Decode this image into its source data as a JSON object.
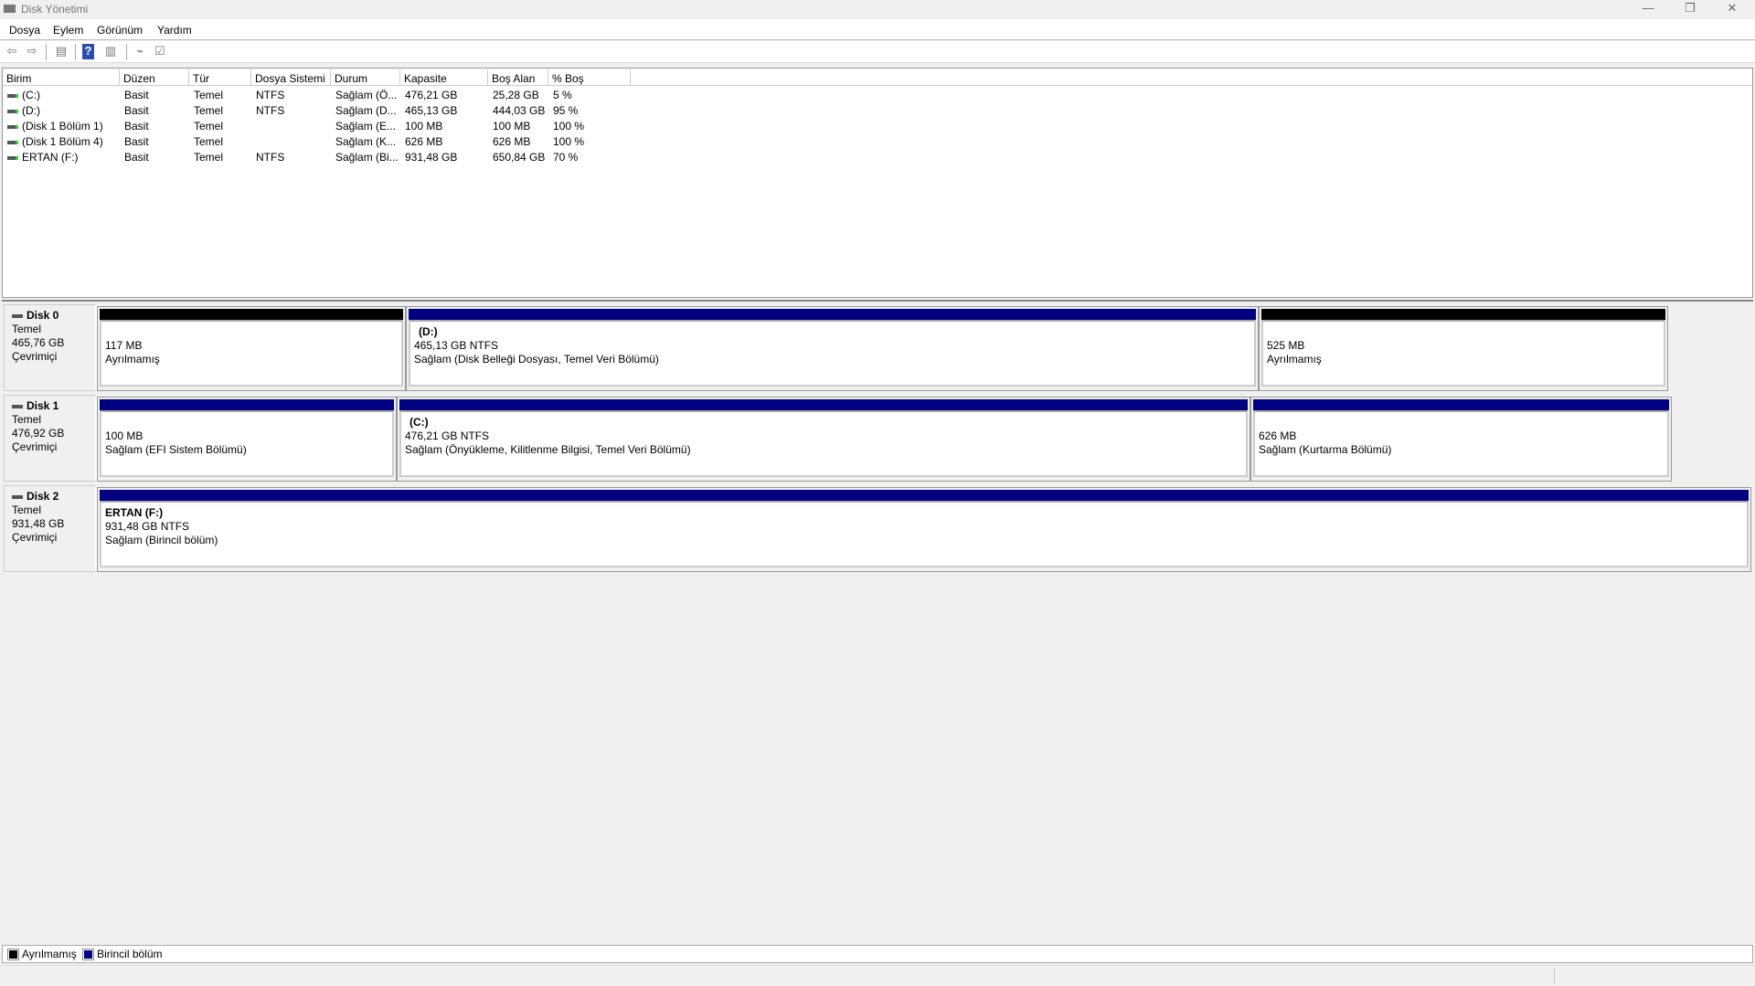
{
  "window": {
    "title": "Disk Yönetimi",
    "minimize": "—",
    "restore": "❐",
    "close": "✕"
  },
  "menu": [
    "Dosya",
    "Eylem",
    "Görünüm",
    "Yardım"
  ],
  "toolbar": [
    "back-icon",
    "forward-icon",
    "console-tree-icon",
    "help-icon",
    "action-pane-icon",
    "connect-icon",
    "properties-icon"
  ],
  "list": {
    "columns": [
      "Birim",
      "Düzen",
      "Tür",
      "Dosya Sistemi",
      "Durum",
      "Kapasite",
      "Boş Alan",
      "% Boş"
    ],
    "rows": [
      [
        "(C:)",
        "Basit",
        "Temel",
        "NTFS",
        "Sağlam (Ö...",
        "476,21 GB",
        "25,28 GB",
        "5 %"
      ],
      [
        "(D:)",
        "Basit",
        "Temel",
        "NTFS",
        "Sağlam (D...",
        "465,13 GB",
        "444,03 GB",
        "95 %"
      ],
      [
        "(Disk 1 Bölüm 1)",
        "Basit",
        "Temel",
        "",
        "Sağlam (E...",
        "100 MB",
        "100 MB",
        "100 %"
      ],
      [
        "(Disk 1 Bölüm 4)",
        "Basit",
        "Temel",
        "",
        "Sağlam (K...",
        "626 MB",
        "626 MB",
        "100 %"
      ],
      [
        "ERTAN (F:)",
        "Basit",
        "Temel",
        "NTFS",
        "Sağlam (Bi...",
        "931,48 GB",
        "650,84 GB",
        "70 %"
      ]
    ]
  },
  "disks": [
    {
      "name": "Disk 0",
      "type": "Temel",
      "size": "465,76 GB",
      "status": "Çevrimiçi",
      "partitions": [
        {
          "kind": "unallocated",
          "label": "",
          "size": "117 MB",
          "desc": "Ayrılmamış"
        },
        {
          "kind": "primary",
          "label": "(D:)",
          "size": "465,13 GB NTFS",
          "desc": "Sağlam (Disk Belleği Dosyası, Temel Veri Bölümü)"
        },
        {
          "kind": "unallocated",
          "label": "",
          "size": "525 MB",
          "desc": "Ayrılmamış"
        }
      ]
    },
    {
      "name": "Disk 1",
      "type": "Temel",
      "size": "476,92 GB",
      "status": "Çevrimiçi",
      "partitions": [
        {
          "kind": "primary",
          "label": "",
          "size": "100 MB",
          "desc": "Sağlam (EFI Sistem Bölümü)"
        },
        {
          "kind": "primary",
          "label": "(C:)",
          "size": "476,21 GB NTFS",
          "desc": "Sağlam (Önyükleme, Kilitlenme Bilgisi, Temel Veri Bölümü)"
        },
        {
          "kind": "primary",
          "label": "",
          "size": "626 MB",
          "desc": "Sağlam (Kurtarma Bölümü)"
        }
      ]
    },
    {
      "name": "Disk 2",
      "type": "Temel",
      "size": "931,48 GB",
      "status": "Çevrimiçi",
      "partitions": [
        {
          "kind": "primary",
          "label": "ERTAN  (F:)",
          "size": "931,48 GB NTFS",
          "desc": "Sağlam (Birincil bölüm)"
        }
      ]
    }
  ],
  "legend": [
    {
      "label": "Ayrılmamış",
      "color": "#000000"
    },
    {
      "label": "Birincil bölüm",
      "color": "#000080"
    }
  ],
  "colors": {
    "unallocated": "#000000",
    "primary": "#000080"
  }
}
